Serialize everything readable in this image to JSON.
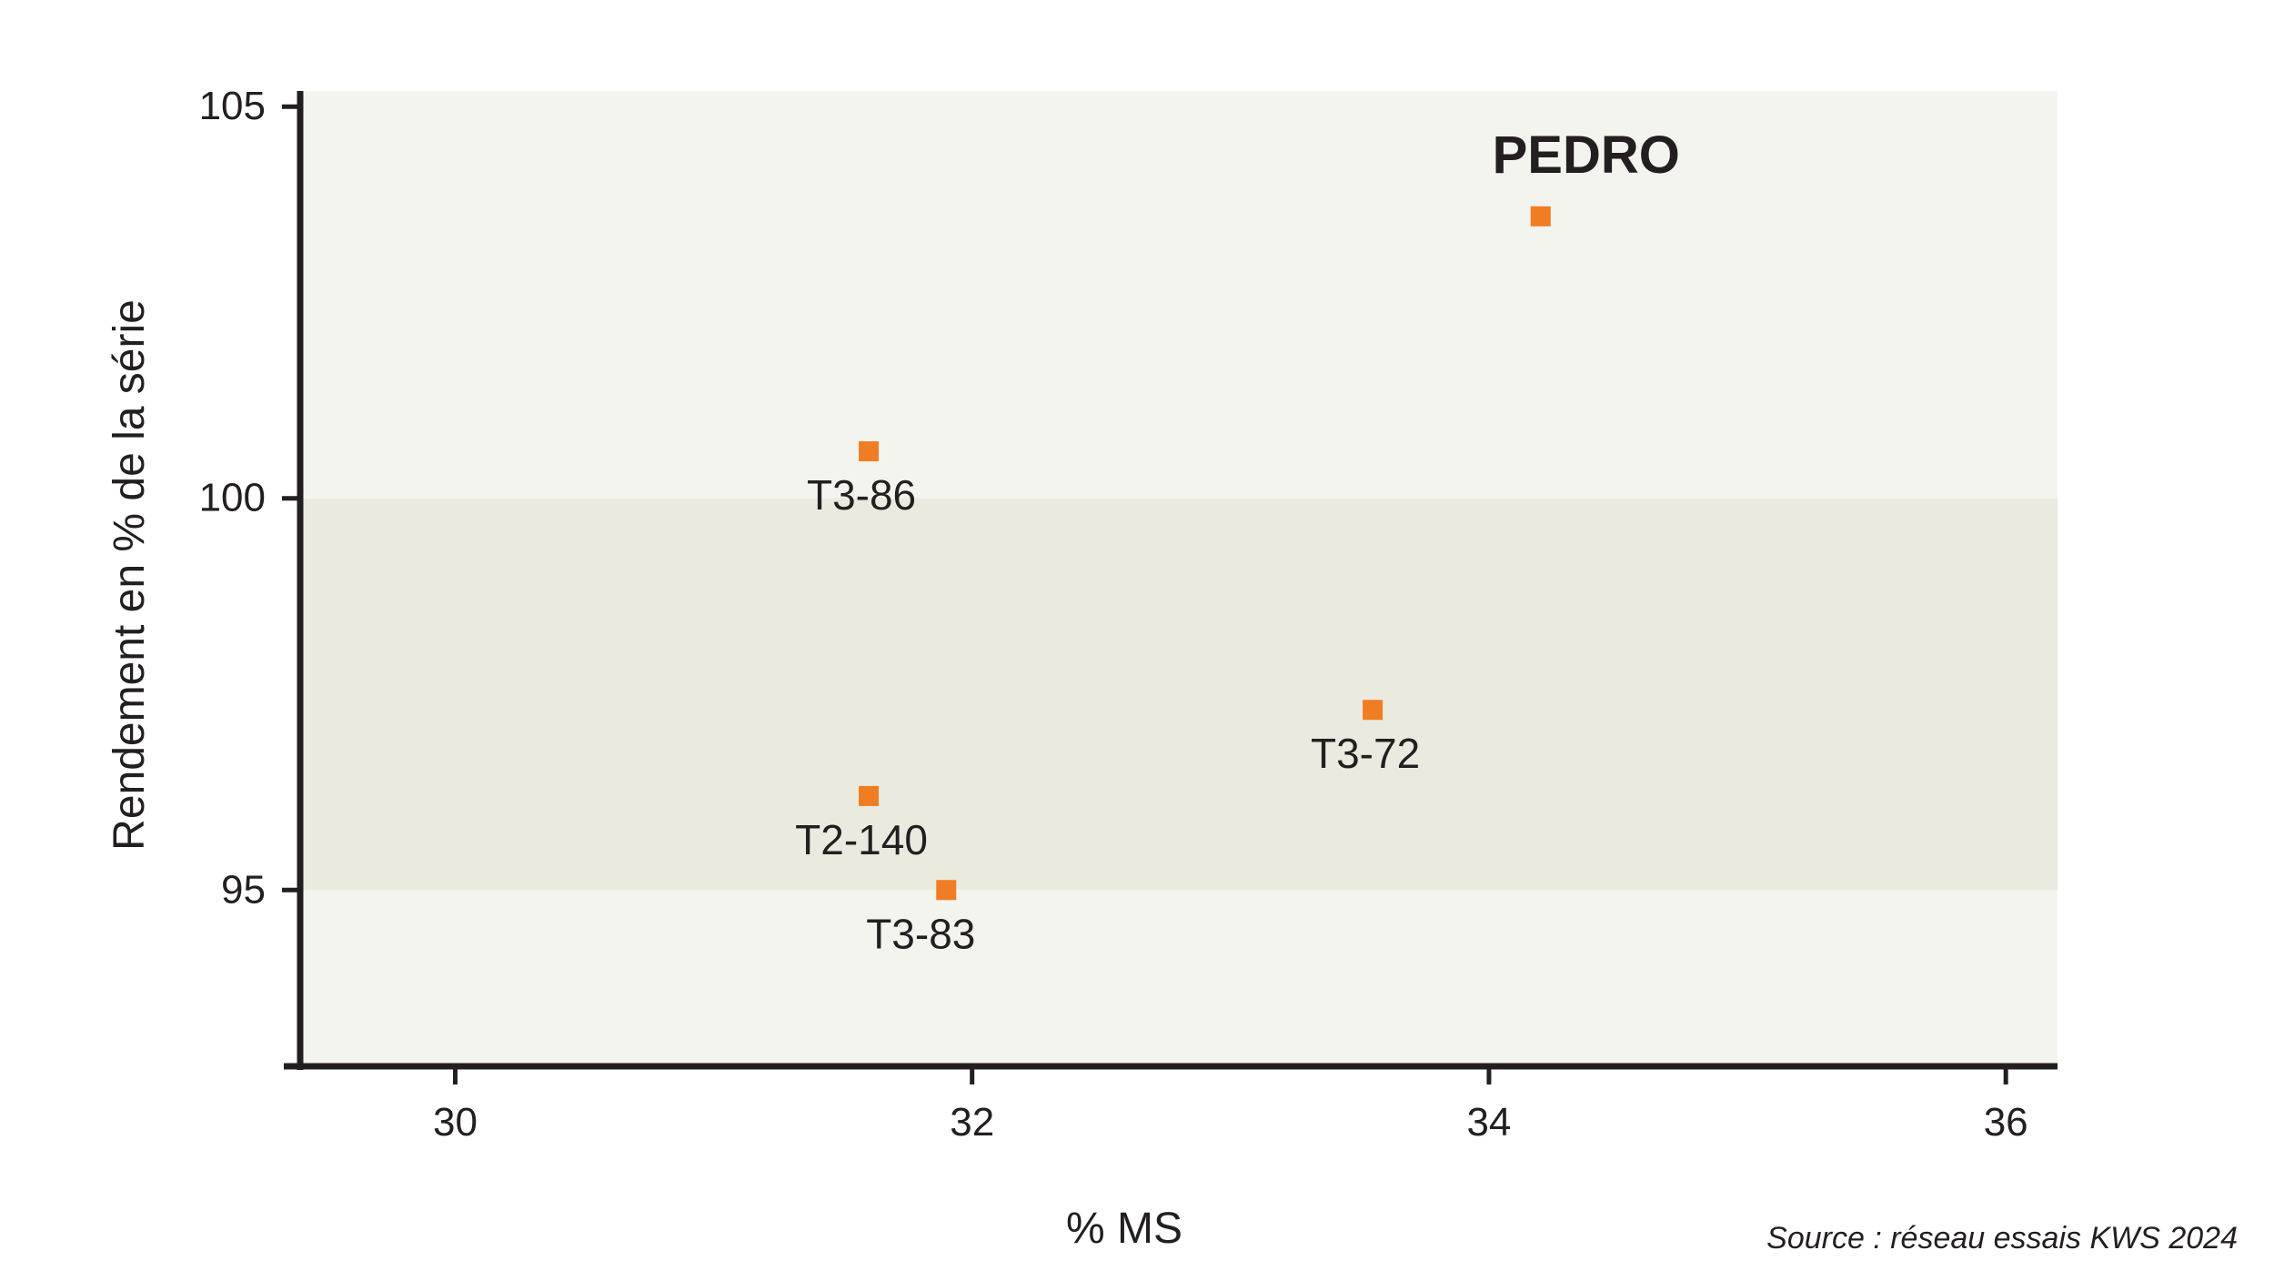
{
  "colors": {
    "background": "#f4f4ef",
    "band": "#ebeadf",
    "axis": "#231f20",
    "marker": "#f07d23",
    "highlight": "#f07d23"
  },
  "chart_data": {
    "type": "scatter",
    "title": "",
    "xlabel": "% MS",
    "ylabel": "Rendement en % de la série",
    "xlim": [
      29.4,
      36.2
    ],
    "ylim": [
      92.75,
      105.2
    ],
    "xticks": [
      30,
      32,
      34,
      36
    ],
    "yticks": [
      95,
      100,
      105
    ],
    "band": [
      95,
      100
    ],
    "grid": false,
    "legend": "none",
    "points": [
      {
        "label": "PEDRO",
        "x": 34.2,
        "y": 103.6,
        "highlight": true,
        "label_pos": "above-right"
      },
      {
        "label": "T3-86",
        "x": 31.6,
        "y": 100.6,
        "highlight": false,
        "label_pos": "below"
      },
      {
        "label": "T3-72",
        "x": 33.55,
        "y": 97.3,
        "highlight": false,
        "label_pos": "below"
      },
      {
        "label": "T2-140",
        "x": 31.6,
        "y": 96.2,
        "highlight": false,
        "label_pos": "below"
      },
      {
        "label": "T3-83",
        "x": 31.9,
        "y": 95.0,
        "highlight": false,
        "label_pos": "below-right"
      }
    ]
  },
  "source": "Source : réseau essais KWS 2024"
}
